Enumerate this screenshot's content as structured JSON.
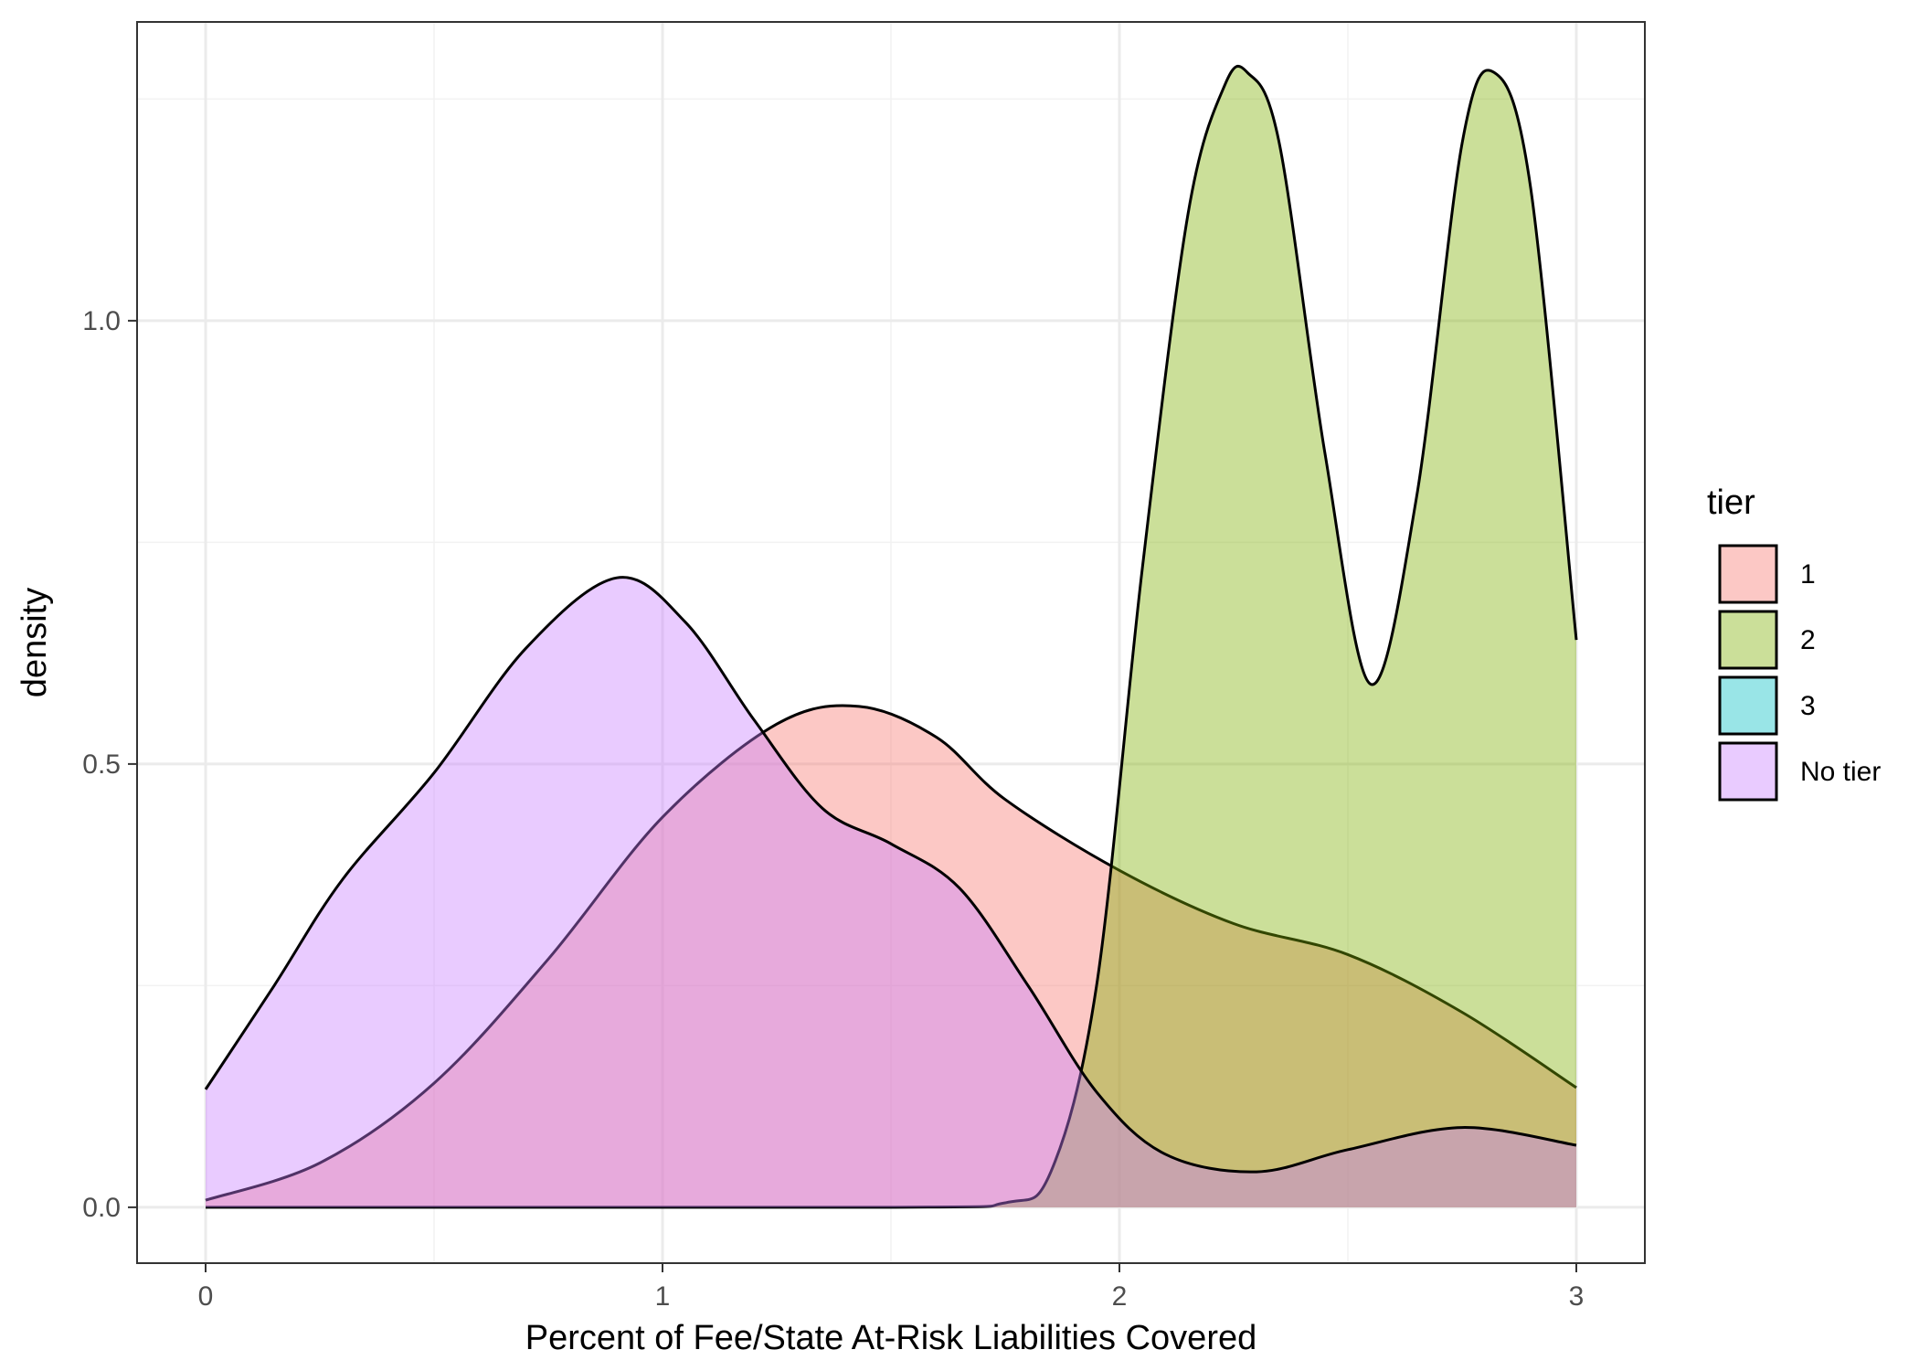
{
  "chart_data": {
    "type": "area",
    "xlabel": "Percent of Fee/State At-Risk Liabilities Covered",
    "ylabel": "density",
    "xlim": [
      -0.15,
      3.15
    ],
    "ylim": [
      -0.063,
      1.337
    ],
    "x_ticks": [
      0,
      1,
      2,
      3
    ],
    "y_ticks": [
      0.0,
      0.5,
      1.0
    ],
    "x_tick_labels": [
      "0",
      "1",
      "2",
      "3"
    ],
    "y_tick_labels": [
      "0.0",
      "0.5",
      "1.0"
    ],
    "grid": true,
    "legend": {
      "title": "tier",
      "placement": "right"
    },
    "series": [
      {
        "name": "1",
        "color": "#F8766D",
        "x": [
          0,
          0.25,
          0.5,
          0.75,
          1.0,
          1.25,
          1.43,
          1.6,
          1.75,
          2.0,
          2.25,
          2.5,
          2.75,
          3.0
        ],
        "y": [
          0.008,
          0.05,
          0.14,
          0.28,
          0.44,
          0.545,
          0.565,
          0.53,
          0.46,
          0.38,
          0.32,
          0.285,
          0.22,
          0.135
        ]
      },
      {
        "name": "2",
        "color": "#7CAE00",
        "x": [
          0,
          1.5,
          1.75,
          1.85,
          1.95,
          2.05,
          2.15,
          2.23,
          2.28,
          2.35,
          2.45,
          2.55,
          2.65,
          2.75,
          2.82,
          2.9,
          3.0
        ],
        "y": [
          0,
          0,
          0.005,
          0.04,
          0.25,
          0.72,
          1.12,
          1.265,
          1.28,
          1.2,
          0.85,
          0.59,
          0.8,
          1.2,
          1.28,
          1.15,
          0.64
        ]
      },
      {
        "name": "3",
        "color": "#00BFC4",
        "x": [],
        "y": []
      },
      {
        "name": "No tier",
        "color": "#C77CFF",
        "x": [
          0,
          0.15,
          0.3,
          0.5,
          0.7,
          0.9,
          1.05,
          1.2,
          1.35,
          1.5,
          1.65,
          1.8,
          1.95,
          2.1,
          2.3,
          2.5,
          2.75,
          3.0
        ],
        "y": [
          0.133,
          0.25,
          0.37,
          0.49,
          0.63,
          0.71,
          0.66,
          0.55,
          0.45,
          0.41,
          0.36,
          0.25,
          0.13,
          0.06,
          0.04,
          0.065,
          0.09,
          0.07
        ]
      }
    ]
  }
}
